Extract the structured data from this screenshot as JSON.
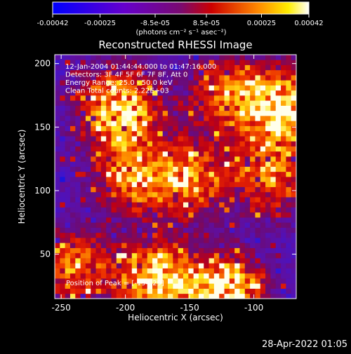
{
  "colorbar": {
    "ticks": [
      "-0.00042",
      "-0.00025",
      "-8.5e-05",
      "8.5e-05",
      "0.00025",
      "0.00042"
    ],
    "unit_label": "(photons cm⁻² s⁻¹ asec⁻²)"
  },
  "colors": {
    "background": "#000000",
    "text": "#ffffff"
  },
  "chart_data": {
    "type": "heatmap",
    "title": "Reconstructed RHESSI Image",
    "xlabel": "Heliocentric X (arcsec)",
    "ylabel": "Heliocentric Y (arcsec)",
    "xlim": [
      -255,
      -67
    ],
    "ylim": [
      15,
      207
    ],
    "x_ticks": [
      "-250",
      "-200",
      "-150",
      "-100"
    ],
    "y_ticks": [
      "50",
      "100",
      "150",
      "200"
    ],
    "colormap": "rainbow-blue-purple-red-yellow-white",
    "value_range": [
      -0.00042,
      0.00042
    ],
    "annotations": [
      "12-Jan-2004 01:44:44.000 to 01:47:16.000",
      "Detectors: 3F 4F 5F 6F 7F 8F, Att 0",
      "Energy Range: 25.0 - 50.0 keV",
      "Clean    Total counts: 2.22E+03",
      "Position of Peak = [-194,29]"
    ],
    "bright_regions": [
      {
        "x": -205,
        "y": 165,
        "level": "high"
      },
      {
        "x": -175,
        "y": 30,
        "level": "high"
      },
      {
        "x": -120,
        "y": 20,
        "level": "high"
      },
      {
        "x": -75,
        "y": 165,
        "level": "high"
      },
      {
        "x": -120,
        "y": 175,
        "level": "medium"
      },
      {
        "x": -240,
        "y": 40,
        "level": "medium"
      },
      {
        "x": -85,
        "y": 110,
        "level": "medium"
      },
      {
        "x": -150,
        "y": 110,
        "level": "medium"
      },
      {
        "x": -195,
        "y": 110,
        "level": "medium"
      }
    ]
  },
  "footer": {
    "timestamp": "28-Apr-2022 01:05"
  }
}
